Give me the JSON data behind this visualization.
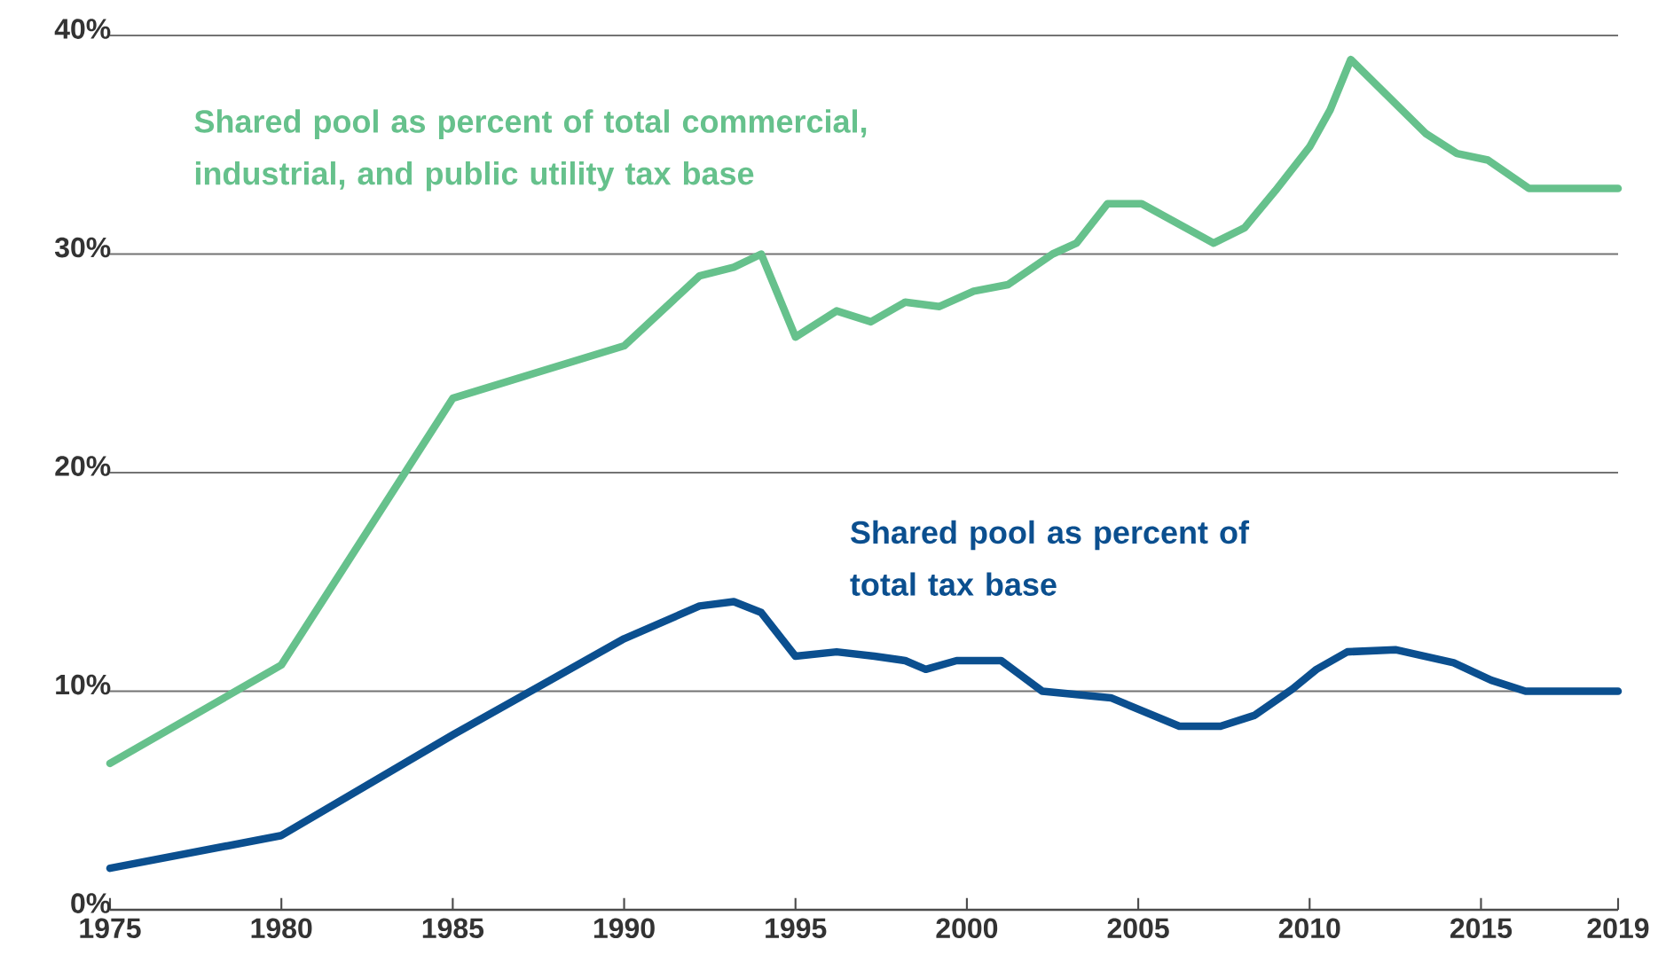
{
  "chart_data": {
    "type": "line",
    "xlim": [
      1975,
      2019
    ],
    "ylim": [
      0,
      40
    ],
    "xticks": [
      1975,
      1980,
      1985,
      1990,
      1995,
      2000,
      2005,
      2010,
      2015,
      2019
    ],
    "yticks": [
      {
        "value": 0,
        "label": "0%"
      },
      {
        "value": 10,
        "label": "10%"
      },
      {
        "value": 20,
        "label": "20%"
      },
      {
        "value": 30,
        "label": "30%"
      },
      {
        "value": 40,
        "label": "40%"
      }
    ],
    "grid": "y",
    "legend": false,
    "marker": "none",
    "line_style": "solid",
    "series": [
      {
        "name": "Shared pool as percent of total commercial, industrial, and public utility tax base",
        "color": "#66c18c",
        "x": [
          1975,
          1980,
          1985,
          1990,
          1992.2,
          1993.2,
          1994,
          1995,
          1996.2,
          1997.2,
          1998.2,
          1999.2,
          2000.2,
          2001.2,
          2002.5,
          2003.2,
          2004.1,
          2005.1,
          2007.2,
          2008.1,
          2009,
          2010,
          2010.6,
          2011.2,
          2013.4,
          2014.3,
          2015.2,
          2016.4,
          2019
        ],
        "values": [
          6.7,
          11.2,
          23.4,
          25.8,
          29.0,
          29.4,
          30.0,
          26.2,
          27.4,
          26.9,
          27.8,
          27.6,
          28.3,
          28.6,
          30.0,
          30.5,
          32.3,
          32.3,
          30.5,
          31.2,
          32.9,
          34.9,
          36.6,
          38.9,
          35.5,
          34.6,
          34.3,
          33.0,
          33.0
        ]
      },
      {
        "name": "Shared pool as percent of total tax base",
        "color": "#0b4f8f",
        "x": [
          1975,
          1980,
          1985,
          1990,
          1992.2,
          1993.2,
          1994,
          1995,
          1996.2,
          1997.3,
          1998.2,
          1998.8,
          1999.7,
          2001,
          2002.2,
          2004.2,
          2006.2,
          2007.4,
          2008.4,
          2009.5,
          2010.2,
          2011.1,
          2012.5,
          2014.2,
          2015.3,
          2016.3,
          2019
        ],
        "values": [
          1.9,
          3.4,
          8.0,
          12.4,
          13.9,
          14.1,
          13.6,
          11.6,
          11.8,
          11.6,
          11.4,
          11.0,
          11.4,
          11.4,
          10.0,
          9.7,
          8.4,
          8.4,
          8.9,
          10.1,
          11.0,
          11.8,
          11.9,
          11.3,
          10.5,
          10.0,
          10.0
        ]
      }
    ]
  }
}
